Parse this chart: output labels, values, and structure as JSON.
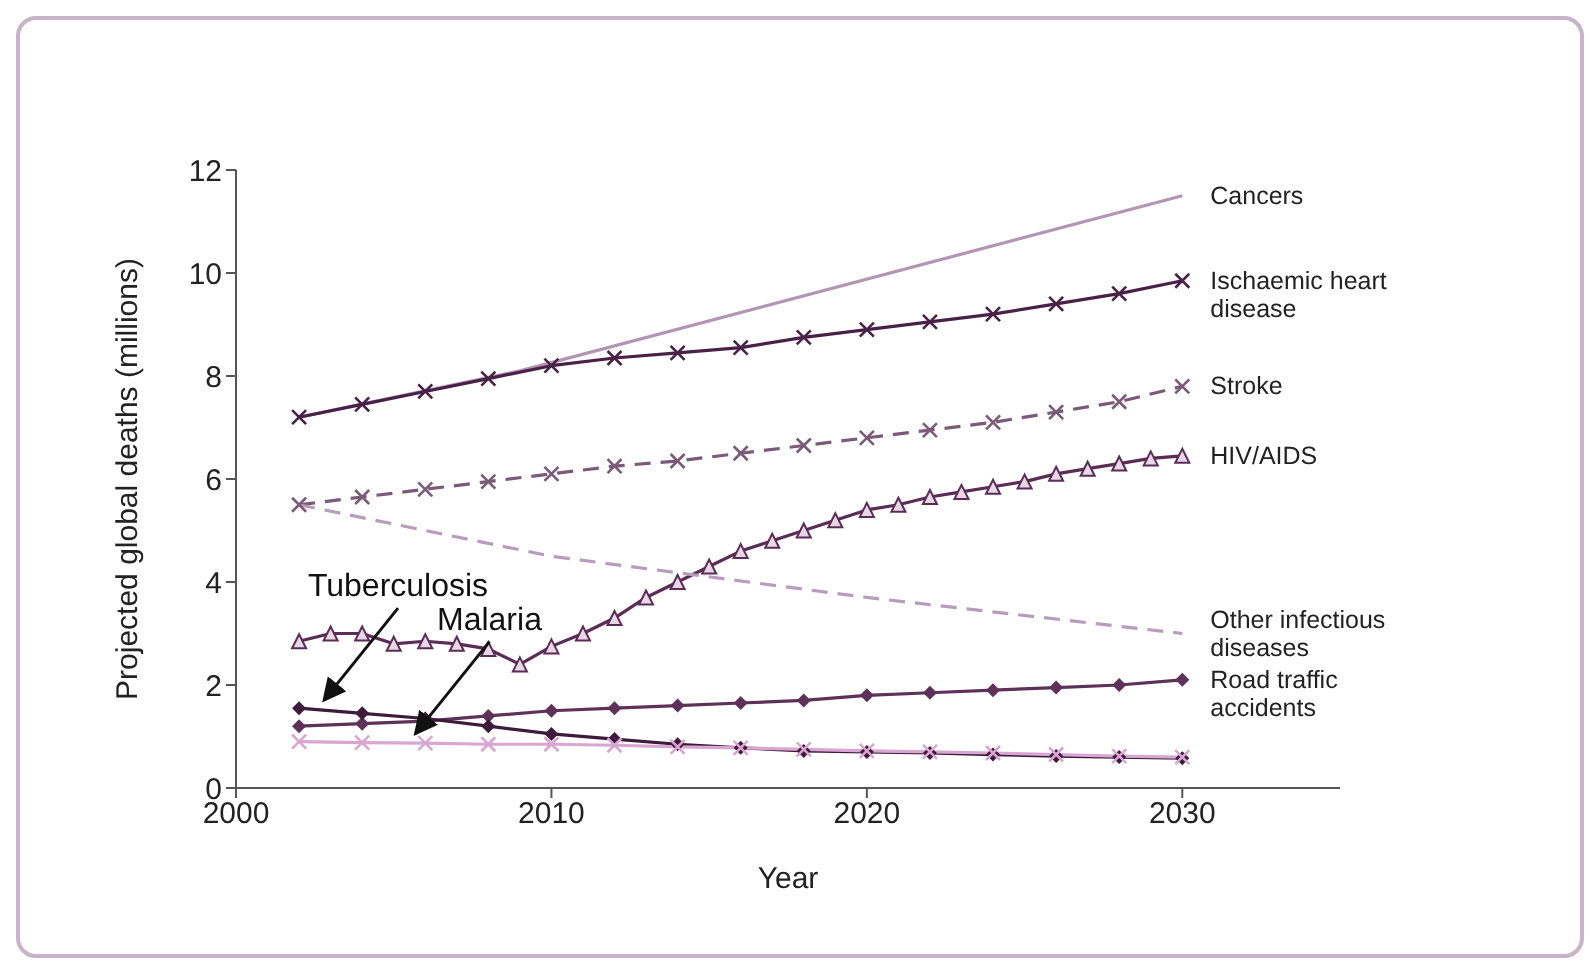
{
  "chart_data": {
    "type": "line",
    "xlabel": "Year",
    "ylabel": "Projected global deaths (millions)",
    "xlim": [
      2000,
      2035
    ],
    "xticks": [
      2000,
      2010,
      2020,
      2030
    ],
    "ylim": [
      0,
      12
    ],
    "yticks": [
      0,
      2,
      4,
      6,
      8,
      10,
      12
    ],
    "grid": false,
    "series": [
      {
        "name": "Cancers",
        "color": "#b394b3",
        "marker": "none",
        "line_style": "solid",
        "x": [
          2002,
          2009,
          2030
        ],
        "values": [
          7.2,
          8.1,
          11.5
        ]
      },
      {
        "name": "Ischaemic heart disease",
        "color": "#4a2146",
        "marker": "cross",
        "line_style": "solid",
        "x": [
          2002,
          2004,
          2006,
          2008,
          2010,
          2012,
          2014,
          2016,
          2018,
          2020,
          2022,
          2024,
          2026,
          2028,
          2030
        ],
        "values": [
          7.2,
          7.45,
          7.7,
          7.95,
          8.2,
          8.35,
          8.45,
          8.55,
          8.75,
          8.9,
          9.05,
          9.2,
          9.4,
          9.6,
          9.85
        ]
      },
      {
        "name": "Stroke",
        "color": "#7a5a78",
        "marker": "cross",
        "line_style": "dashed",
        "x": [
          2002,
          2004,
          2006,
          2008,
          2010,
          2012,
          2014,
          2016,
          2018,
          2020,
          2022,
          2024,
          2026,
          2028,
          2030
        ],
        "values": [
          5.5,
          5.65,
          5.8,
          5.95,
          6.1,
          6.25,
          6.35,
          6.5,
          6.65,
          6.8,
          6.95,
          7.1,
          7.3,
          7.5,
          7.8
        ]
      },
      {
        "name": "HIV/AIDS",
        "color": "#5a2c56",
        "marker": "triangle",
        "line_style": "solid",
        "x": [
          2002,
          2003,
          2004,
          2005,
          2006,
          2007,
          2008,
          2009,
          2010,
          2011,
          2012,
          2013,
          2014,
          2015,
          2016,
          2017,
          2018,
          2019,
          2020,
          2021,
          2022,
          2023,
          2024,
          2025,
          2026,
          2027,
          2028,
          2029,
          2030
        ],
        "values": [
          2.85,
          3.0,
          3.0,
          2.8,
          2.85,
          2.8,
          2.7,
          2.4,
          2.75,
          3.0,
          3.3,
          3.7,
          4.0,
          4.3,
          4.6,
          4.8,
          5.0,
          5.2,
          5.4,
          5.5,
          5.65,
          5.75,
          5.85,
          5.95,
          6.1,
          6.2,
          6.3,
          6.4,
          6.45
        ]
      },
      {
        "name": "Other infectious diseases",
        "color": "#b89cbc",
        "marker": "none",
        "line_style": "dashed",
        "x": [
          2002,
          2010,
          2020,
          2030
        ],
        "values": [
          5.5,
          4.5,
          3.7,
          3.0
        ]
      },
      {
        "name": "Road traffic accidents",
        "color": "#5e3159",
        "marker": "diamond",
        "line_style": "solid",
        "x": [
          2002,
          2004,
          2006,
          2008,
          2010,
          2012,
          2014,
          2016,
          2018,
          2020,
          2022,
          2024,
          2026,
          2028,
          2030
        ],
        "values": [
          1.2,
          1.25,
          1.3,
          1.4,
          1.5,
          1.55,
          1.6,
          1.65,
          1.7,
          1.8,
          1.85,
          1.9,
          1.95,
          2.0,
          2.1
        ]
      },
      {
        "color": "#3e1a3b",
        "marker": "diamond",
        "line_style": "solid",
        "x": [
          2002,
          2004,
          2006,
          2008,
          2010,
          2012,
          2014,
          2016,
          2018,
          2020,
          2022,
          2024,
          2026,
          2028,
          2030
        ],
        "values": [
          1.55,
          1.45,
          1.35,
          1.2,
          1.05,
          0.95,
          0.85,
          0.78,
          0.72,
          0.7,
          0.68,
          0.65,
          0.62,
          0.6,
          0.58
        ]
      },
      {
        "color": "#d9a6d3",
        "marker": "cross",
        "line_style": "solid",
        "x": [
          2002,
          2004,
          2006,
          2008,
          2010,
          2012,
          2014,
          2016,
          2018,
          2020,
          2022,
          2024,
          2026,
          2028,
          2030
        ],
        "values": [
          0.9,
          0.88,
          0.87,
          0.85,
          0.85,
          0.83,
          0.8,
          0.78,
          0.75,
          0.72,
          0.7,
          0.68,
          0.65,
          0.62,
          0.6
        ]
      }
    ],
    "annotations": [
      {
        "text": "Tuberculosis",
        "x": 2002.6,
        "y": 1.55
      },
      {
        "text": "Malaria",
        "x": 2005.5,
        "y": 0.9
      }
    ]
  }
}
